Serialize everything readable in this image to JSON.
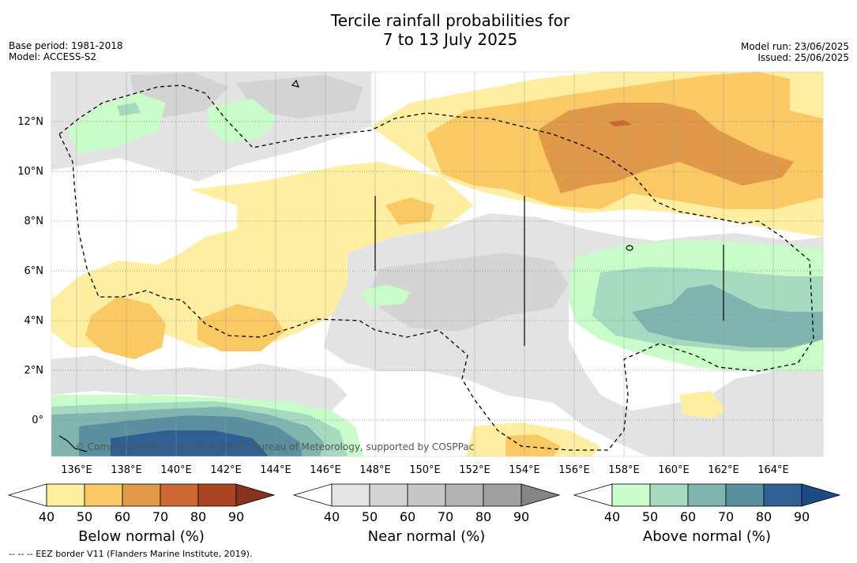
{
  "header": {
    "title_line1": "Tercile rainfall probabilities for",
    "title_line2": "7 to 13 July 2025",
    "base_period": "Base period: 1981-2018",
    "model": "Model: ACCESS-S2",
    "model_run": "Model run: 23/06/2025",
    "issued": "Issued: 25/06/2025"
  },
  "map": {
    "lat_labels": [
      "12°N",
      "10°N",
      "8°N",
      "6°N",
      "4°N",
      "2°N",
      "0°"
    ],
    "lon_labels": [
      "136°E",
      "138°E",
      "140°E",
      "142°E",
      "144°E",
      "146°E",
      "148°E",
      "150°E",
      "152°E",
      "154°E",
      "156°E",
      "158°E",
      "160°E",
      "162°E",
      "164°E"
    ],
    "copyright": "© Commonwealth of Australia 2025, Bureau of Meteorology, supported by COSPPac"
  },
  "colorbars": [
    {
      "label": "Below normal (%)",
      "ticks": [
        "40",
        "50",
        "60",
        "70",
        "80",
        "90"
      ],
      "colors": [
        "#ffffff",
        "#fdeea0",
        "#fbc965",
        "#e09a4a",
        "#cc6634",
        "#aa4422",
        "#883322"
      ]
    },
    {
      "label": "Near normal (%)",
      "ticks": [
        "40",
        "50",
        "60",
        "70",
        "80",
        "90"
      ],
      "colors": [
        "#ffffff",
        "#e4e4e4",
        "#d4d4d4",
        "#c6c6c6",
        "#b2b2b2",
        "#a0a0a0",
        "#848484"
      ]
    },
    {
      "label": "Above normal (%)",
      "ticks": [
        "40",
        "50",
        "60",
        "70",
        "80",
        "90"
      ],
      "colors": [
        "#ffffff",
        "#cafccc",
        "#a6dac0",
        "#7fb5ae",
        "#5a8fa0",
        "#2f6094",
        "#1d4b86"
      ]
    }
  ],
  "footer": "-- -- -- EEZ border V11 (Flanders Marine Institute, 2019)."
}
